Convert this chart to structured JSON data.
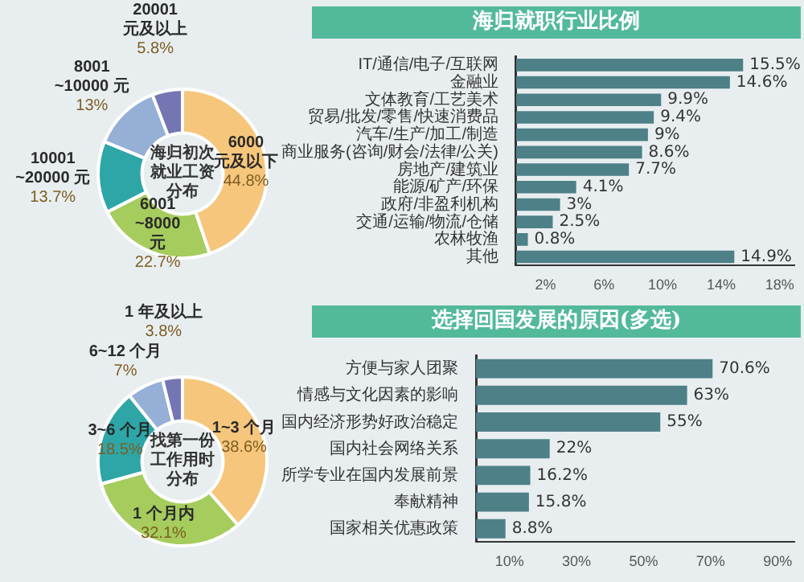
{
  "chart_data": [
    {
      "type": "donut",
      "title": "海归初次就业工资分布",
      "categories": [
        "6000 元及以下",
        "6001~8000 元",
        "10001~20000 元",
        "8001~10000 元",
        "20001 元及以上"
      ],
      "values": [
        44.8,
        22.7,
        13.7,
        13,
        5.8
      ],
      "value_labels": [
        "44.8%",
        "22.7%",
        "13.7%",
        "13%",
        "5.8%"
      ],
      "colors": [
        "#f6c67c",
        "#a5cc5c",
        "#2ea6a8",
        "#95afd6",
        "#7376b3"
      ]
    },
    {
      "type": "bar",
      "orientation": "horizontal",
      "title": "海归就职行业比例",
      "categories": [
        "IT/通信/电子/互联网",
        "金融业",
        "文体教育/工艺美术",
        "贸易/批发/零售/快速消费品",
        "汽车/生产/加工/制造",
        "商业服务(咨询/财会/法律/公关)",
        "房地产/建筑业",
        "能源/矿产/环保",
        "政府/非盈利机构",
        "交通/运输/物流/仓储",
        "农林牧渔",
        "其他"
      ],
      "values": [
        15.5,
        14.6,
        9.9,
        9.4,
        9,
        8.6,
        7.7,
        4.1,
        3,
        2.5,
        0.8,
        14.9
      ],
      "value_labels": [
        "15.5%",
        "14.6%",
        "9.9%",
        "9.4%",
        "9%",
        "8.6%",
        "7.7%",
        "4.1%",
        "3%",
        "2.5%",
        "0.8%",
        "14.9%"
      ],
      "color": "#4e8088",
      "xlim": [
        0,
        19
      ],
      "xticks": [
        {
          "value": 2,
          "label": "2%"
        },
        {
          "value": 6,
          "label": "6%"
        },
        {
          "value": 10,
          "label": "10%"
        },
        {
          "value": 14,
          "label": "14%"
        },
        {
          "value": 18,
          "label": "18%"
        }
      ]
    },
    {
      "type": "donut",
      "title": "找第一份工作用时分布",
      "categories": [
        "1~3 个月",
        "1 个月内",
        "3~6 个月",
        "6~12 个月",
        "1 年及以上"
      ],
      "values": [
        38.6,
        32.1,
        18.5,
        7,
        3.8
      ],
      "value_labels": [
        "38.6%",
        "32.1%",
        "18.5%",
        "7%",
        "3.8%"
      ],
      "colors": [
        "#f6c67c",
        "#a5cc5c",
        "#2ea6a8",
        "#95afd6",
        "#7376b3"
      ]
    },
    {
      "type": "bar",
      "orientation": "horizontal",
      "title": "选择回国发展的原因(多选)",
      "categories": [
        "方便与家人团聚",
        "情感与文化因素的影响",
        "国内经济形势好政治稳定",
        "国内社会网络关系",
        "所学专业在国内发展前景",
        "奉献精神",
        "国家相关优惠政策"
      ],
      "values": [
        70.6,
        63,
        55,
        22,
        16.2,
        15.8,
        8.8
      ],
      "value_labels": [
        "70.6%",
        "63%",
        "55%",
        "22%",
        "16.2%",
        "15.8%",
        "8.8%"
      ],
      "color": "#4e8088",
      "xlim": [
        0,
        95
      ],
      "xticks": [
        {
          "value": 10,
          "label": "10%"
        },
        {
          "value": 30,
          "label": "30%"
        },
        {
          "value": 50,
          "label": "50%"
        },
        {
          "value": 70,
          "label": "70%"
        },
        {
          "value": 90,
          "label": "90%"
        }
      ]
    }
  ]
}
